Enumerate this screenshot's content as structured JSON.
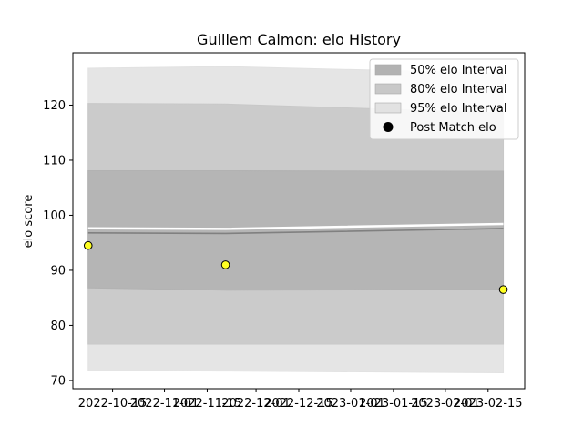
{
  "chart_data": {
    "type": "line",
    "title": "Guillem Calmon: elo History",
    "xlabel": "",
    "ylabel": "elo score",
    "x_dates": [
      "2022-10-07",
      "2022-11-21",
      "2023-02-20"
    ],
    "x_ticks": [
      "2022-10-15",
      "2022-11-01",
      "2022-11-15",
      "2022-12-01",
      "2022-12-15",
      "2023-01-01",
      "2023-01-15",
      "2023-02-01",
      "2023-02-15"
    ],
    "xlim": [
      "2022-10-02",
      "2023-02-27"
    ],
    "ylim": [
      68.5,
      129.5
    ],
    "y_ticks": [
      70,
      80,
      90,
      100,
      110,
      120
    ],
    "grid": false,
    "legend_position": "top-right",
    "series": [
      {
        "name": "50% elo Interval",
        "type": "band",
        "color": "#b2b2b2",
        "lower": [
          86.8,
          86.4,
          86.5
        ],
        "upper": [
          108.1,
          108.1,
          108.0
        ]
      },
      {
        "name": "80% elo Interval",
        "type": "band",
        "color": "#c8c8c8",
        "lower": [
          76.6,
          76.6,
          76.6
        ],
        "upper": [
          120.3,
          120.2,
          118.6
        ]
      },
      {
        "name": "95% elo Interval",
        "type": "band",
        "color": "#e2e2e2",
        "lower": [
          71.8,
          71.7,
          71.4
        ],
        "upper": [
          126.7,
          127.0,
          125.8
        ]
      },
      {
        "name": "",
        "type": "line",
        "color": "#808080",
        "values": [
          96.8,
          96.7,
          97.6
        ]
      },
      {
        "name": "Post Match elo",
        "type": "scatter",
        "color": "#ffff22",
        "values": [
          94.5,
          91.0,
          86.5
        ]
      }
    ],
    "legend": [
      {
        "label": "50% elo Interval",
        "swatch": "band",
        "color": "#b2b2b2"
      },
      {
        "label": "80% elo Interval",
        "swatch": "band",
        "color": "#c8c8c8"
      },
      {
        "label": "95% elo Interval",
        "swatch": "band",
        "color": "#e2e2e2"
      },
      {
        "label": "Post Match elo",
        "swatch": "dot",
        "color": "#000000"
      }
    ]
  }
}
